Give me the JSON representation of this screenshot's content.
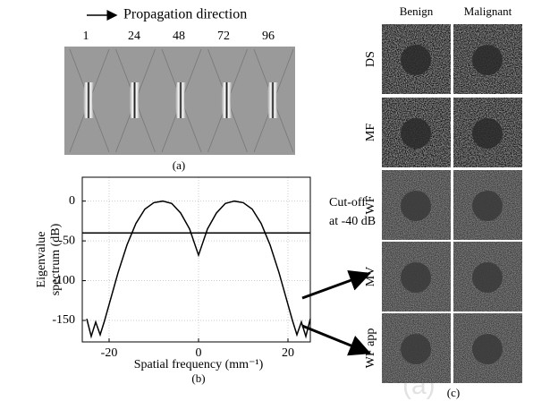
{
  "panel_a": {
    "direction_label": "Propagation direction",
    "frames": [
      1,
      24,
      48,
      72,
      96
    ],
    "caption": "(a)"
  },
  "chart_data": {
    "type": "line",
    "x": [
      -25,
      -24,
      -23,
      -22,
      -21,
      -20,
      -18,
      -16,
      -14,
      -12,
      -10,
      -8,
      -6,
      -4,
      -2,
      0,
      2,
      4,
      6,
      8,
      10,
      12,
      14,
      16,
      18,
      20,
      21,
      22,
      23,
      24,
      25
    ],
    "values": [
      -148,
      -170,
      -152,
      -168,
      -150,
      -130,
      -90,
      -55,
      -28,
      -10,
      -2,
      0,
      -3,
      -15,
      -35,
      -68,
      -35,
      -15,
      -3,
      0,
      -2,
      -10,
      -28,
      -55,
      -90,
      -130,
      -150,
      -168,
      -152,
      -170,
      -148
    ],
    "color": "#000000",
    "xlim": [
      -26,
      25
    ],
    "ylim": [
      -177,
      30
    ],
    "xticks": [
      -20,
      0,
      20
    ],
    "yticks": [
      0,
      -50,
      -100,
      -150
    ],
    "grid": true,
    "cutoff": -40,
    "annotation_lines": [
      "Cut-off",
      "at -40 dB"
    ],
    "ylabel_lines": [
      "Eigenvalue",
      "spectrum (dB)"
    ],
    "xlabel": "Spatial frequency (mm⁻¹)",
    "caption": "(b)"
  },
  "panel_c": {
    "columns": [
      "Benign",
      "Malignant"
    ],
    "rows": [
      "DS",
      "MF",
      "WF",
      "MV",
      "WF app"
    ],
    "caption": "(c)",
    "watermark": "(a)"
  }
}
